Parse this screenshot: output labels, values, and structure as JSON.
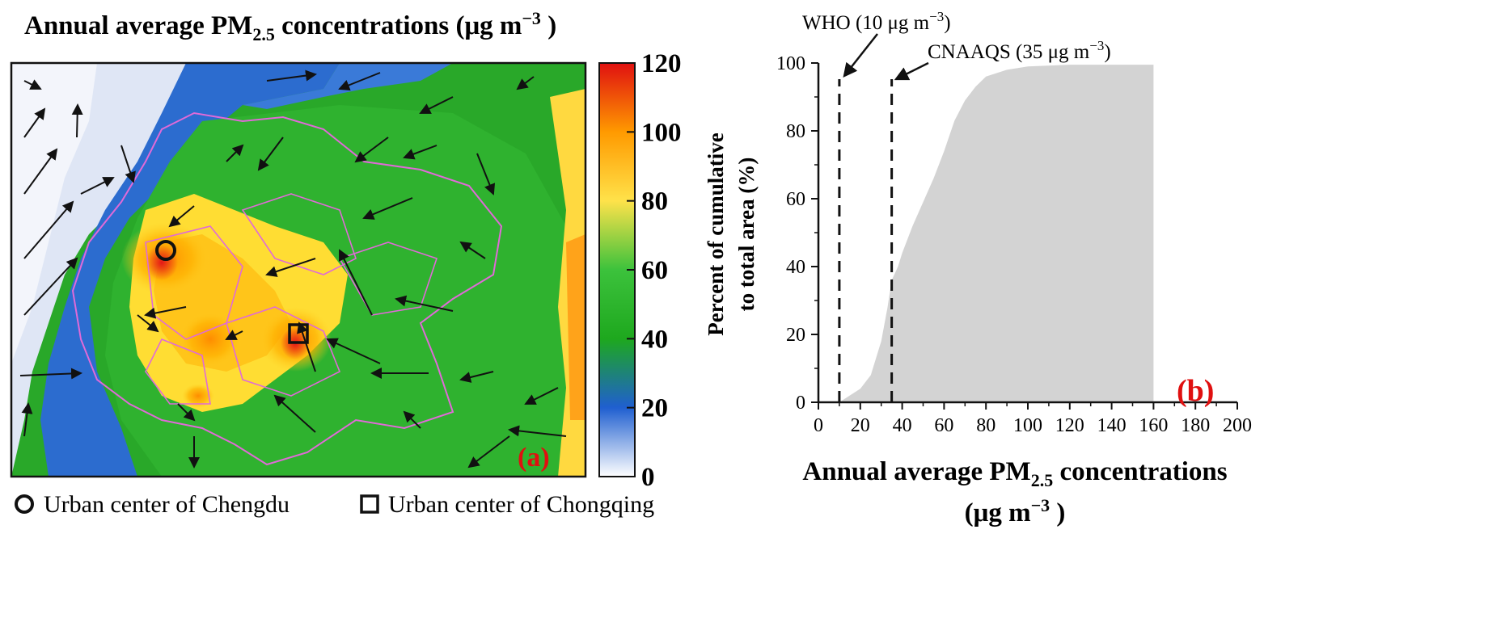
{
  "panel_a": {
    "title_prefix": "Annual average PM",
    "title_sub": "2.5",
    "title_suffix": " concentrations (μg m",
    "title_sup": "−3",
    "title_close": " )",
    "label": "(a)",
    "colorbar": {
      "ticks": [
        "0",
        "20",
        "40",
        "60",
        "80",
        "100",
        "120"
      ],
      "min": 0,
      "max": 120,
      "colors": [
        "#ffffff",
        "#1f5fd0",
        "#1ea81e",
        "#3cc23c",
        "#ffe24a",
        "#ff9a00",
        "#e01010"
      ]
    },
    "legend": {
      "chengdu": "Urban center of Chengdu",
      "chongqing": "Urban center of Chongqing"
    }
  },
  "chart_data": {
    "type": "area",
    "label": "(b)",
    "ylabel_line1": "Percent of cumulative",
    "ylabel_line2": "to total area (%)",
    "xlabel_prefix": "Annual average PM",
    "xlabel_sub": "2.5",
    "xlabel_suffix": " concentrations",
    "xlabel_unit_prefix": "(μg m",
    "xlabel_unit_sup": "−3",
    "xlabel_unit_close": " )",
    "xlim": [
      0,
      200
    ],
    "ylim": [
      0,
      100
    ],
    "xticks": [
      "0",
      "20",
      "40",
      "60",
      "80",
      "100",
      "120",
      "140",
      "160",
      "180",
      "200"
    ],
    "yticks": [
      "0",
      "20",
      "40",
      "60",
      "80",
      "100"
    ],
    "x": [
      10,
      15,
      20,
      25,
      30,
      33,
      35,
      38,
      40,
      45,
      50,
      55,
      60,
      65,
      70,
      75,
      80,
      90,
      100,
      120,
      140,
      160
    ],
    "y": [
      0,
      2,
      4,
      8,
      18,
      28,
      36,
      40,
      44,
      52,
      59,
      66,
      74,
      83,
      89,
      93,
      96,
      98,
      99,
      99.5,
      99.5,
      99.5
    ],
    "fill_color": "#d3d3d3",
    "reference_lines": [
      {
        "x": 10,
        "text_prefix": "WHO (10 μg m",
        "text_sup": "−3",
        "text_close": ")"
      },
      {
        "x": 35,
        "text_prefix": "CNAAQS (35 μg m",
        "text_sup": "−3",
        "text_close": ")"
      }
    ]
  }
}
